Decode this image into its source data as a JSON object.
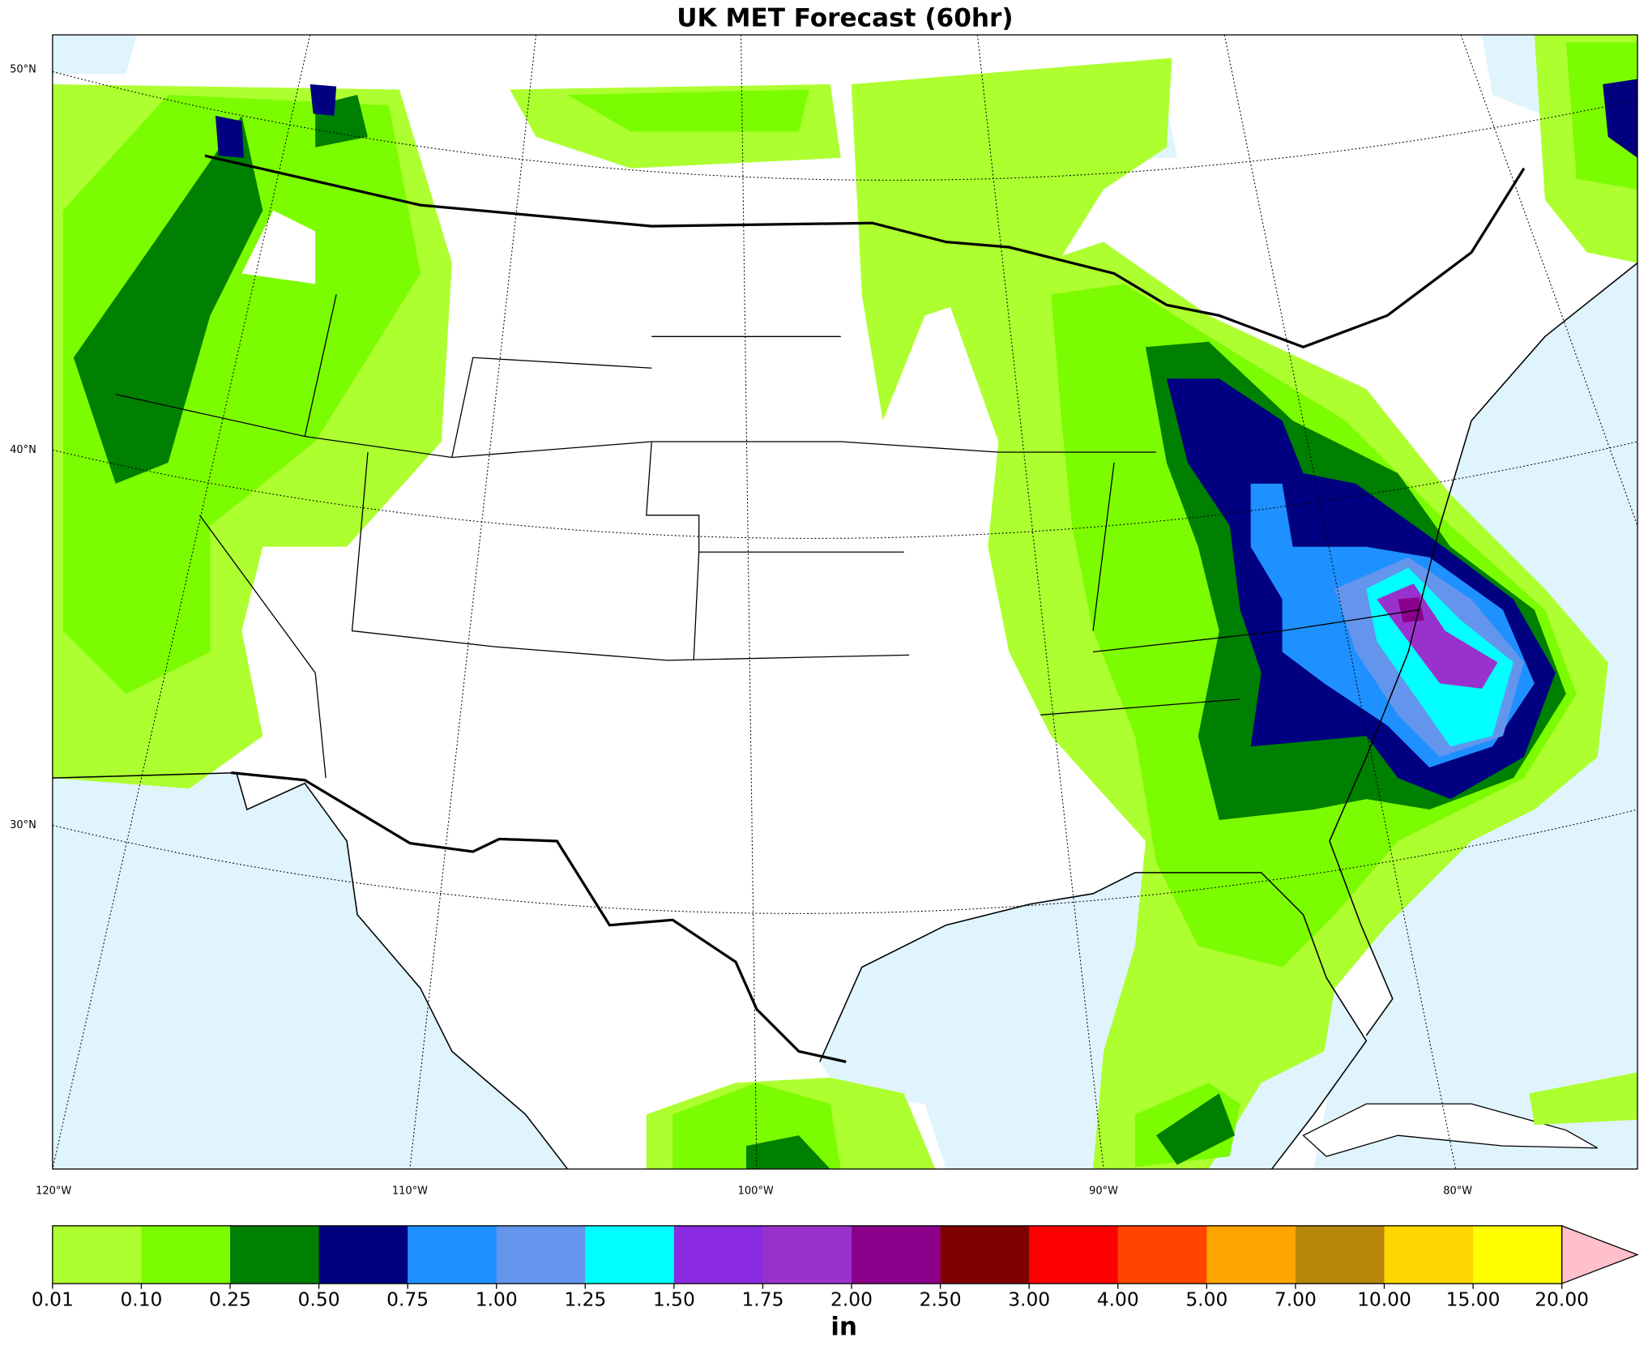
{
  "title": "UK MET Forecast (60hr)",
  "map": {
    "lat_labels": [
      "50°N",
      "40°N",
      "30°N"
    ],
    "lon_labels": [
      "120°W",
      "110°W",
      "100°W",
      "90°W",
      "80°W"
    ]
  },
  "colorbar": {
    "ticks": [
      "0.01",
      "0.10",
      "0.25",
      "0.50",
      "0.75",
      "1.00",
      "1.25",
      "1.50",
      "1.75",
      "2.00",
      "2.50",
      "3.00",
      "4.00",
      "5.00",
      "7.00",
      "10.00",
      "15.00",
      "20.00"
    ],
    "colors": [
      "#adff2f",
      "#7cfc00",
      "#008000",
      "#000080",
      "#1e90ff",
      "#6495ed",
      "#00ffff",
      "#8a2be2",
      "#9932cc",
      "#8b008b",
      "#800000",
      "#ff0000",
      "#ff4500",
      "#ffa500",
      "#b8860b",
      "#ffd700",
      "#ffff00"
    ],
    "extend_color": "#ffc0cb",
    "unit": "in"
  }
}
